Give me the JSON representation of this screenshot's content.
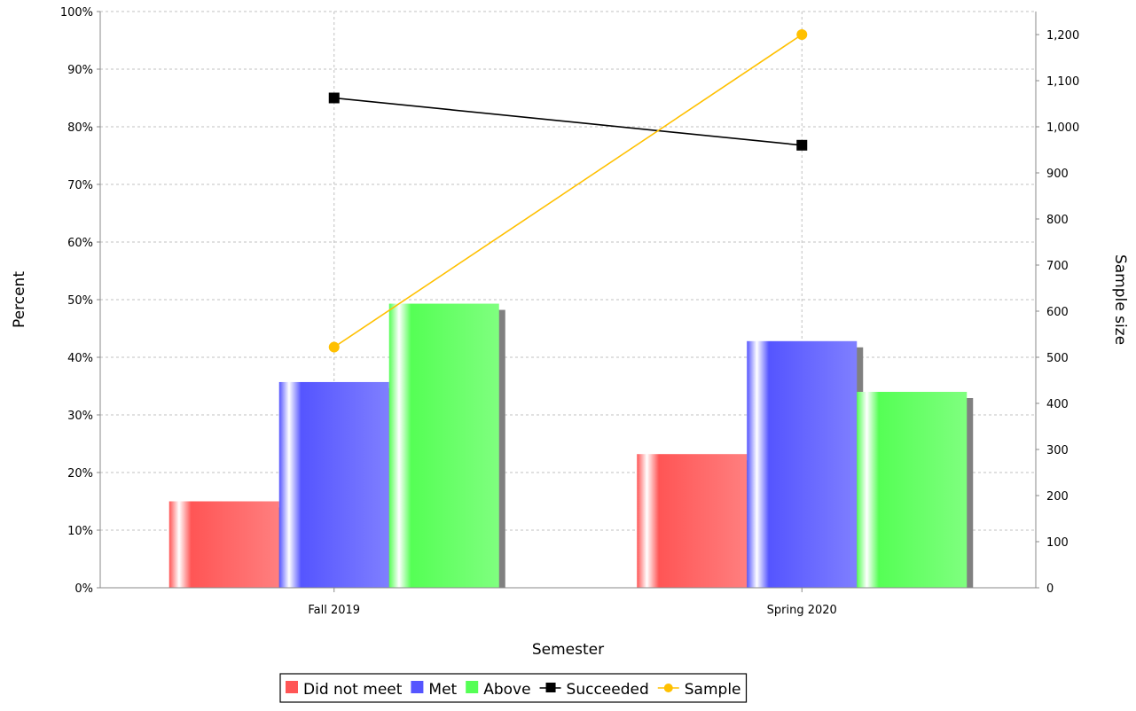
{
  "chart_data": {
    "type": "bar",
    "categories": [
      "Fall 2019",
      "Spring 2020"
    ],
    "series": [
      {
        "name": "Did not meet",
        "values": [
          15,
          23.2
        ],
        "color": "#ff5555",
        "axis": "left"
      },
      {
        "name": "Met",
        "values": [
          35.7,
          42.8
        ],
        "color": "#5555ff",
        "axis": "left"
      },
      {
        "name": "Above",
        "values": [
          49.3,
          34
        ],
        "color": "#55ff55",
        "axis": "left"
      }
    ],
    "lines": [
      {
        "name": "Succeeded",
        "values": [
          85,
          76.8
        ],
        "color": "#000000",
        "marker": "square",
        "axis": "left"
      },
      {
        "name": "Sample",
        "values": [
          522,
          1200
        ],
        "color": "#ffc000",
        "marker": "circle",
        "axis": "right"
      }
    ],
    "xlabel": "Semester",
    "ylabel": "Percent",
    "y2label": "Sample size",
    "ylim": [
      0,
      100
    ],
    "y2lim": [
      0,
      1250
    ],
    "yticks": [
      0,
      10,
      20,
      30,
      40,
      50,
      60,
      70,
      80,
      90,
      100
    ],
    "ytick_labels": [
      "0%",
      "10%",
      "20%",
      "30%",
      "40%",
      "50%",
      "60%",
      "70%",
      "80%",
      "90%",
      "100%"
    ],
    "y2ticks": [
      0,
      100,
      200,
      300,
      400,
      500,
      600,
      700,
      800,
      900,
      1000,
      1100,
      1200
    ],
    "y2tick_labels": [
      "0",
      "100",
      "200",
      "300",
      "400",
      "500",
      "600",
      "700",
      "800",
      "900",
      "1,000",
      "1,100",
      "1,200"
    ],
    "grid": true,
    "legend_position": "bottom"
  }
}
